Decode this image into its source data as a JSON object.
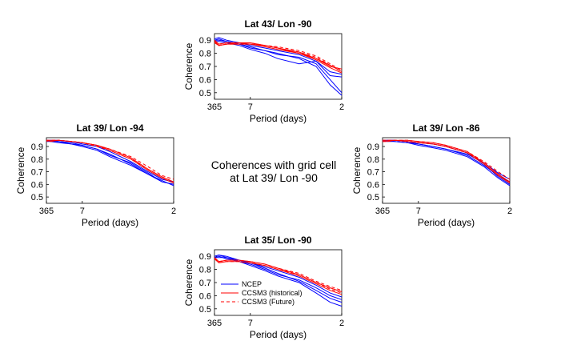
{
  "figure": {
    "center_text_line1": "Coherences with grid cell",
    "center_text_line2": "at Lat 39/ Lon -90"
  },
  "legend": {
    "entries": [
      {
        "name": "NCEP",
        "color": "#0000ff",
        "style": "solid"
      },
      {
        "name": "CCSM3 (historical)",
        "color": "#ff0000",
        "style": "solid"
      },
      {
        "name": "CCSM3 (Future)",
        "color": "#ff0000",
        "style": "dashed"
      }
    ]
  },
  "chart_data": [
    {
      "type": "line",
      "title": "Lat 43/ Lon -90",
      "xlabel": "Period (days)",
      "ylabel": "Coherence",
      "x_ticks": [
        "365",
        "7",
        "2"
      ],
      "y_ticks": [
        "0.5",
        "0.6",
        "0.7",
        "0.8",
        "0.9"
      ],
      "ylim": [
        0.45,
        0.95
      ],
      "x_scale": "frequency",
      "x_frequency_range": [
        0.00274,
        0.5
      ],
      "legend": false,
      "series": [
        {
          "group": "NCEP",
          "period_days": [
            365,
            50,
            20,
            10,
            7,
            5,
            4,
            3,
            2.5,
            2.2,
            2
          ],
          "values": [
            0.91,
            0.92,
            0.9,
            0.88,
            0.86,
            0.84,
            0.82,
            0.79,
            0.74,
            0.66,
            0.64
          ]
        },
        {
          "group": "NCEP",
          "period_days": [
            365,
            50,
            20,
            10,
            7,
            5,
            4,
            3,
            2.5,
            2.2,
            2
          ],
          "values": [
            0.9,
            0.91,
            0.89,
            0.87,
            0.85,
            0.82,
            0.79,
            0.77,
            0.72,
            0.6,
            0.5
          ]
        },
        {
          "group": "NCEP",
          "period_days": [
            365,
            50,
            20,
            10,
            7,
            5,
            4,
            3,
            2.5,
            2.2,
            2
          ],
          "values": [
            0.89,
            0.89,
            0.88,
            0.86,
            0.83,
            0.8,
            0.76,
            0.72,
            0.74,
            0.63,
            0.62
          ]
        },
        {
          "group": "NCEP",
          "period_days": [
            365,
            50,
            20,
            10,
            7,
            5,
            4,
            3,
            2.5,
            2.2,
            2
          ],
          "values": [
            0.9,
            0.9,
            0.89,
            0.87,
            0.84,
            0.82,
            0.8,
            0.76,
            0.7,
            0.56,
            0.48
          ]
        },
        {
          "group": "CCSM3 (historical)",
          "period_days": [
            365,
            50,
            20,
            10,
            7,
            5,
            4,
            3,
            2.5,
            2.2,
            2
          ],
          "values": [
            0.89,
            0.86,
            0.87,
            0.88,
            0.88,
            0.86,
            0.84,
            0.81,
            0.76,
            0.71,
            0.66
          ]
        },
        {
          "group": "CCSM3 (historical)",
          "period_days": [
            365,
            50,
            20,
            10,
            7,
            5,
            4,
            3,
            2.5,
            2.2,
            2
          ],
          "values": [
            0.9,
            0.87,
            0.88,
            0.88,
            0.87,
            0.86,
            0.84,
            0.8,
            0.76,
            0.7,
            0.68
          ]
        },
        {
          "group": "CCSM3 (historical)",
          "period_days": [
            365,
            50,
            20,
            10,
            7,
            5,
            4,
            3,
            2.5,
            2.2,
            2
          ],
          "values": [
            0.88,
            0.86,
            0.87,
            0.87,
            0.87,
            0.85,
            0.83,
            0.8,
            0.75,
            0.69,
            0.65
          ]
        },
        {
          "group": "CCSM3 (Future)",
          "period_days": [
            365,
            50,
            20,
            10,
            7,
            5,
            4,
            3,
            2.5,
            2.2,
            2
          ],
          "values": [
            0.9,
            0.87,
            0.88,
            0.88,
            0.88,
            0.86,
            0.85,
            0.82,
            0.78,
            0.72,
            0.67
          ]
        },
        {
          "group": "CCSM3 (Future)",
          "period_days": [
            365,
            50,
            20,
            10,
            7,
            5,
            4,
            3,
            2.5,
            2.2,
            2
          ],
          "values": [
            0.89,
            0.86,
            0.87,
            0.87,
            0.87,
            0.86,
            0.84,
            0.81,
            0.77,
            0.71,
            0.66
          ]
        }
      ]
    },
    {
      "type": "line",
      "title": "Lat 39/ Lon -94",
      "xlabel": "Period (days)",
      "ylabel": "Coherence",
      "x_ticks": [
        "365",
        "7",
        "2"
      ],
      "y_ticks": [
        "0.5",
        "0.6",
        "0.7",
        "0.8",
        "0.9"
      ],
      "ylim": [
        0.45,
        0.97
      ],
      "x_scale": "frequency",
      "x_frequency_range": [
        0.00274,
        0.5
      ],
      "legend": false,
      "series": [
        {
          "group": "NCEP",
          "period_days": [
            365,
            50,
            20,
            10,
            7,
            5,
            4,
            3,
            2.5,
            2.2,
            2
          ],
          "values": [
            0.95,
            0.95,
            0.95,
            0.94,
            0.92,
            0.9,
            0.86,
            0.78,
            0.7,
            0.64,
            0.62
          ]
        },
        {
          "group": "NCEP",
          "period_days": [
            365,
            50,
            20,
            10,
            7,
            5,
            4,
            3,
            2.5,
            2.2,
            2
          ],
          "values": [
            0.94,
            0.95,
            0.94,
            0.93,
            0.91,
            0.88,
            0.84,
            0.76,
            0.68,
            0.62,
            0.6
          ]
        },
        {
          "group": "NCEP",
          "period_days": [
            365,
            50,
            20,
            10,
            7,
            5,
            4,
            3,
            2.5,
            2.2,
            2
          ],
          "values": [
            0.95,
            0.94,
            0.94,
            0.92,
            0.9,
            0.87,
            0.82,
            0.75,
            0.68,
            0.63,
            0.59
          ]
        },
        {
          "group": "NCEP",
          "period_days": [
            365,
            50,
            20,
            10,
            7,
            5,
            4,
            3,
            2.5,
            2.2,
            2
          ],
          "values": [
            0.94,
            0.94,
            0.93,
            0.92,
            0.91,
            0.88,
            0.83,
            0.77,
            0.69,
            0.62,
            0.6
          ]
        },
        {
          "group": "CCSM3 (historical)",
          "period_days": [
            365,
            50,
            20,
            10,
            7,
            5,
            4,
            3,
            2.5,
            2.2,
            2
          ],
          "values": [
            0.95,
            0.95,
            0.95,
            0.94,
            0.93,
            0.91,
            0.88,
            0.81,
            0.72,
            0.66,
            0.62
          ]
        },
        {
          "group": "CCSM3 (historical)",
          "period_days": [
            365,
            50,
            20,
            10,
            7,
            5,
            4,
            3,
            2.5,
            2.2,
            2
          ],
          "values": [
            0.95,
            0.94,
            0.95,
            0.94,
            0.93,
            0.91,
            0.87,
            0.8,
            0.71,
            0.65,
            0.61
          ]
        },
        {
          "group": "CCSM3 (Future)",
          "period_days": [
            365,
            50,
            20,
            10,
            7,
            5,
            4,
            3,
            2.5,
            2.2,
            2
          ],
          "values": [
            0.95,
            0.95,
            0.95,
            0.94,
            0.93,
            0.91,
            0.88,
            0.82,
            0.74,
            0.67,
            0.64
          ]
        },
        {
          "group": "CCSM3 (Future)",
          "period_days": [
            365,
            50,
            20,
            10,
            7,
            5,
            4,
            3,
            2.5,
            2.2,
            2
          ],
          "values": [
            0.94,
            0.95,
            0.95,
            0.94,
            0.93,
            0.9,
            0.87,
            0.8,
            0.72,
            0.66,
            0.62
          ]
        }
      ]
    },
    {
      "type": "line",
      "title": "Lat 39/ Lon -86",
      "xlabel": "Period (days)",
      "ylabel": "Coherence",
      "x_ticks": [
        "365",
        "7",
        "2"
      ],
      "y_ticks": [
        "0.5",
        "0.6",
        "0.7",
        "0.8",
        "0.9"
      ],
      "ylim": [
        0.45,
        0.97
      ],
      "x_scale": "frequency",
      "x_frequency_range": [
        0.00274,
        0.5
      ],
      "legend": false,
      "series": [
        {
          "group": "NCEP",
          "period_days": [
            365,
            50,
            20,
            10,
            7,
            5,
            4,
            3,
            2.5,
            2.2,
            2
          ],
          "values": [
            0.95,
            0.95,
            0.95,
            0.94,
            0.93,
            0.92,
            0.9,
            0.85,
            0.76,
            0.66,
            0.6
          ]
        },
        {
          "group": "NCEP",
          "period_days": [
            365,
            50,
            20,
            10,
            7,
            5,
            4,
            3,
            2.5,
            2.2,
            2
          ],
          "values": [
            0.94,
            0.95,
            0.95,
            0.94,
            0.92,
            0.9,
            0.88,
            0.83,
            0.75,
            0.67,
            0.62
          ]
        },
        {
          "group": "NCEP",
          "period_days": [
            365,
            50,
            20,
            10,
            7,
            5,
            4,
            3,
            2.5,
            2.2,
            2
          ],
          "values": [
            0.95,
            0.94,
            0.94,
            0.93,
            0.92,
            0.9,
            0.88,
            0.84,
            0.77,
            0.69,
            0.64
          ]
        },
        {
          "group": "NCEP",
          "period_days": [
            365,
            50,
            20,
            10,
            7,
            5,
            4,
            3,
            2.5,
            2.2,
            2
          ],
          "values": [
            0.94,
            0.95,
            0.94,
            0.93,
            0.91,
            0.89,
            0.87,
            0.82,
            0.74,
            0.65,
            0.59
          ]
        },
        {
          "group": "CCSM3 (historical)",
          "period_days": [
            365,
            50,
            20,
            10,
            7,
            5,
            4,
            3,
            2.5,
            2.2,
            2
          ],
          "values": [
            0.95,
            0.95,
            0.95,
            0.95,
            0.94,
            0.93,
            0.91,
            0.86,
            0.77,
            0.68,
            0.62
          ]
        },
        {
          "group": "CCSM3 (historical)",
          "period_days": [
            365,
            50,
            20,
            10,
            7,
            5,
            4,
            3,
            2.5,
            2.2,
            2
          ],
          "values": [
            0.94,
            0.94,
            0.95,
            0.94,
            0.93,
            0.92,
            0.9,
            0.85,
            0.76,
            0.67,
            0.61
          ]
        },
        {
          "group": "CCSM3 (Future)",
          "period_days": [
            365,
            50,
            20,
            10,
            7,
            5,
            4,
            3,
            2.5,
            2.2,
            2
          ],
          "values": [
            0.95,
            0.95,
            0.95,
            0.95,
            0.94,
            0.93,
            0.91,
            0.86,
            0.78,
            0.7,
            0.64
          ]
        },
        {
          "group": "CCSM3 (Future)",
          "period_days": [
            365,
            50,
            20,
            10,
            7,
            5,
            4,
            3,
            2.5,
            2.2,
            2
          ],
          "values": [
            0.94,
            0.94,
            0.95,
            0.94,
            0.93,
            0.92,
            0.9,
            0.85,
            0.77,
            0.68,
            0.62
          ]
        }
      ]
    },
    {
      "type": "line",
      "title": "Lat 35/ Lon -90",
      "xlabel": "Period (days)",
      "ylabel": "Coherence",
      "x_ticks": [
        "365",
        "7",
        "2"
      ],
      "y_ticks": [
        "0.5",
        "0.6",
        "0.7",
        "0.8",
        "0.9"
      ],
      "ylim": [
        0.45,
        0.95
      ],
      "x_scale": "frequency",
      "x_frequency_range": [
        0.00274,
        0.5
      ],
      "legend": true,
      "series": [
        {
          "group": "NCEP",
          "period_days": [
            365,
            50,
            20,
            10,
            7,
            5,
            4,
            3,
            2.5,
            2.2,
            2
          ],
          "values": [
            0.9,
            0.91,
            0.9,
            0.87,
            0.85,
            0.81,
            0.77,
            0.71,
            0.64,
            0.58,
            0.55
          ]
        },
        {
          "group": "NCEP",
          "period_days": [
            365,
            50,
            20,
            10,
            7,
            5,
            4,
            3,
            2.5,
            2.2,
            2
          ],
          "values": [
            0.89,
            0.9,
            0.88,
            0.86,
            0.84,
            0.8,
            0.76,
            0.72,
            0.66,
            0.6,
            0.57
          ]
        },
        {
          "group": "NCEP",
          "period_days": [
            365,
            50,
            20,
            10,
            7,
            5,
            4,
            3,
            2.5,
            2.2,
            2
          ],
          "values": [
            0.89,
            0.89,
            0.89,
            0.87,
            0.85,
            0.82,
            0.79,
            0.74,
            0.68,
            0.62,
            0.59
          ]
        },
        {
          "group": "NCEP",
          "period_days": [
            365,
            50,
            20,
            10,
            7,
            5,
            4,
            3,
            2.5,
            2.2,
            2
          ],
          "values": [
            0.9,
            0.91,
            0.89,
            0.86,
            0.83,
            0.79,
            0.75,
            0.7,
            0.62,
            0.55,
            0.52
          ]
        },
        {
          "group": "CCSM3 (historical)",
          "period_days": [
            365,
            50,
            20,
            10,
            7,
            5,
            4,
            3,
            2.5,
            2.2,
            2
          ],
          "values": [
            0.89,
            0.86,
            0.87,
            0.87,
            0.86,
            0.84,
            0.81,
            0.76,
            0.7,
            0.66,
            0.63
          ]
        },
        {
          "group": "CCSM3 (historical)",
          "period_days": [
            365,
            50,
            20,
            10,
            7,
            5,
            4,
            3,
            2.5,
            2.2,
            2
          ],
          "values": [
            0.88,
            0.85,
            0.86,
            0.86,
            0.85,
            0.83,
            0.8,
            0.75,
            0.69,
            0.64,
            0.61
          ]
        },
        {
          "group": "CCSM3 (Future)",
          "period_days": [
            365,
            50,
            20,
            10,
            7,
            5,
            4,
            3,
            2.5,
            2.2,
            2
          ],
          "values": [
            0.89,
            0.86,
            0.87,
            0.87,
            0.86,
            0.84,
            0.81,
            0.77,
            0.71,
            0.67,
            0.64
          ]
        },
        {
          "group": "CCSM3 (Future)",
          "period_days": [
            365,
            50,
            20,
            10,
            7,
            5,
            4,
            3,
            2.5,
            2.2,
            2
          ],
          "values": [
            0.88,
            0.86,
            0.86,
            0.86,
            0.85,
            0.83,
            0.8,
            0.76,
            0.7,
            0.65,
            0.62
          ]
        }
      ]
    }
  ]
}
